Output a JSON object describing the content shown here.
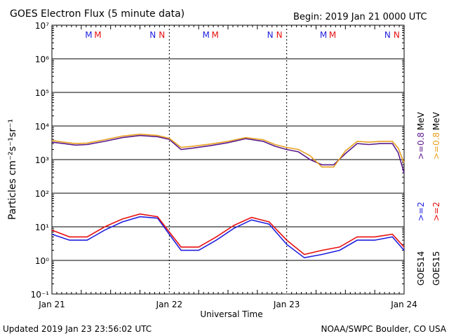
{
  "header": {
    "title": "GOES Electron Flux (5 minute data)",
    "begin": "Begin: 2019 Jan 21 0000 UTC"
  },
  "footer": {
    "updated": "Updated 2019 Jan 23 23:56:02 UTC",
    "credit": "NOAA/SWPC Boulder, CO USA"
  },
  "colors": {
    "goes14_high": "#5a1a8c",
    "goes15_high": "#e8a020",
    "goes14_low": "#1f1fe0",
    "goes15_low": "#e81010",
    "marker_m": [
      "#1f1fe0",
      "#e81010"
    ],
    "marker_n": [
      "#1f1fe0",
      "#e81010"
    ]
  },
  "right_legend": {
    "goes14": "GOES14",
    "goes15": "GOES15",
    "low_14": ">=2",
    "low_15": ">=2",
    "high_14": ">=0.8",
    "high_15": ">=0.8",
    "unit": "MeV"
  },
  "markers": [
    {
      "day": 0.33,
      "letters": [
        "M",
        "M"
      ]
    },
    {
      "day": 0.88,
      "letters": [
        "N",
        "N"
      ]
    },
    {
      "day": 1.33,
      "letters": [
        "M",
        "M"
      ]
    },
    {
      "day": 1.88,
      "letters": [
        "N",
        "N"
      ]
    },
    {
      "day": 2.33,
      "letters": [
        "M",
        "M"
      ]
    },
    {
      "day": 2.88,
      "letters": [
        "N",
        "N"
      ]
    }
  ],
  "chart_data": {
    "type": "line",
    "title": "GOES Electron Flux (5 minute data)",
    "xlabel": "Universal Time",
    "ylabel": "Particles cm⁻²s⁻¹sr⁻¹",
    "y_scale": "log",
    "ylim": [
      0.1,
      10000000
    ],
    "x_ticks": [
      "Jan 21",
      "Jan 22",
      "Jan 23",
      "Jan 24"
    ],
    "y_ticks": [
      "10⁻¹",
      "10⁰",
      "10¹",
      "10²",
      "10³",
      "10⁴",
      "10⁵",
      "10⁶",
      "10⁷"
    ],
    "threshold": {
      "value": 1000,
      "style": "dashed"
    },
    "grid": true,
    "series": [
      {
        "name": "GOES14 >=0.8 MeV",
        "x": [
          0.0,
          0.1,
          0.2,
          0.3,
          0.45,
          0.6,
          0.75,
          0.9,
          1.0,
          1.1,
          1.2,
          1.35,
          1.5,
          1.65,
          1.8,
          1.9,
          2.0,
          2.1,
          2.2,
          2.3,
          2.4,
          2.5,
          2.6,
          2.7,
          2.8,
          2.9,
          2.95,
          3.0
        ],
        "values": [
          3300,
          3000,
          2700,
          2800,
          3500,
          4500,
          5200,
          4800,
          4000,
          2000,
          2200,
          2600,
          3200,
          4200,
          3500,
          2500,
          2000,
          1700,
          1000,
          700,
          700,
          1500,
          3000,
          2800,
          3000,
          3000,
          1600,
          400
        ]
      },
      {
        "name": "GOES15 >=0.8 MeV",
        "x": [
          0.0,
          0.1,
          0.2,
          0.3,
          0.45,
          0.6,
          0.75,
          0.9,
          1.0,
          1.1,
          1.2,
          1.35,
          1.5,
          1.65,
          1.8,
          1.9,
          2.0,
          2.1,
          2.2,
          2.3,
          2.4,
          2.5,
          2.6,
          2.7,
          2.8,
          2.9,
          2.95,
          3.0
        ],
        "values": [
          3700,
          3300,
          3000,
          3100,
          3900,
          5000,
          5700,
          5200,
          4300,
          2300,
          2500,
          2900,
          3500,
          4500,
          3900,
          2800,
          2300,
          2000,
          1300,
          600,
          600,
          1800,
          3500,
          3300,
          3500,
          3500,
          2200,
          800
        ]
      },
      {
        "name": "GOES14 >=2 MeV",
        "x": [
          0.0,
          0.15,
          0.3,
          0.45,
          0.6,
          0.75,
          0.9,
          1.0,
          1.1,
          1.25,
          1.4,
          1.55,
          1.7,
          1.85,
          2.0,
          2.15,
          2.3,
          2.45,
          2.6,
          2.75,
          2.9,
          3.0
        ],
        "values": [
          6,
          4,
          4,
          8,
          14,
          20,
          18,
          6,
          2,
          2,
          4,
          9,
          16,
          12,
          3,
          1.2,
          1.5,
          2,
          4,
          4,
          5,
          2
        ]
      },
      {
        "name": "GOES15 >=2 MeV",
        "x": [
          0.0,
          0.15,
          0.3,
          0.45,
          0.6,
          0.75,
          0.9,
          1.0,
          1.1,
          1.25,
          1.4,
          1.55,
          1.7,
          1.85,
          2.0,
          2.15,
          2.3,
          2.45,
          2.6,
          2.75,
          2.9,
          3.0
        ],
        "values": [
          8,
          5,
          5,
          10,
          17,
          24,
          20,
          7,
          2.5,
          2.5,
          5,
          11,
          19,
          14,
          4,
          1.5,
          2,
          2.5,
          5,
          5,
          6,
          2.5
        ]
      }
    ]
  }
}
